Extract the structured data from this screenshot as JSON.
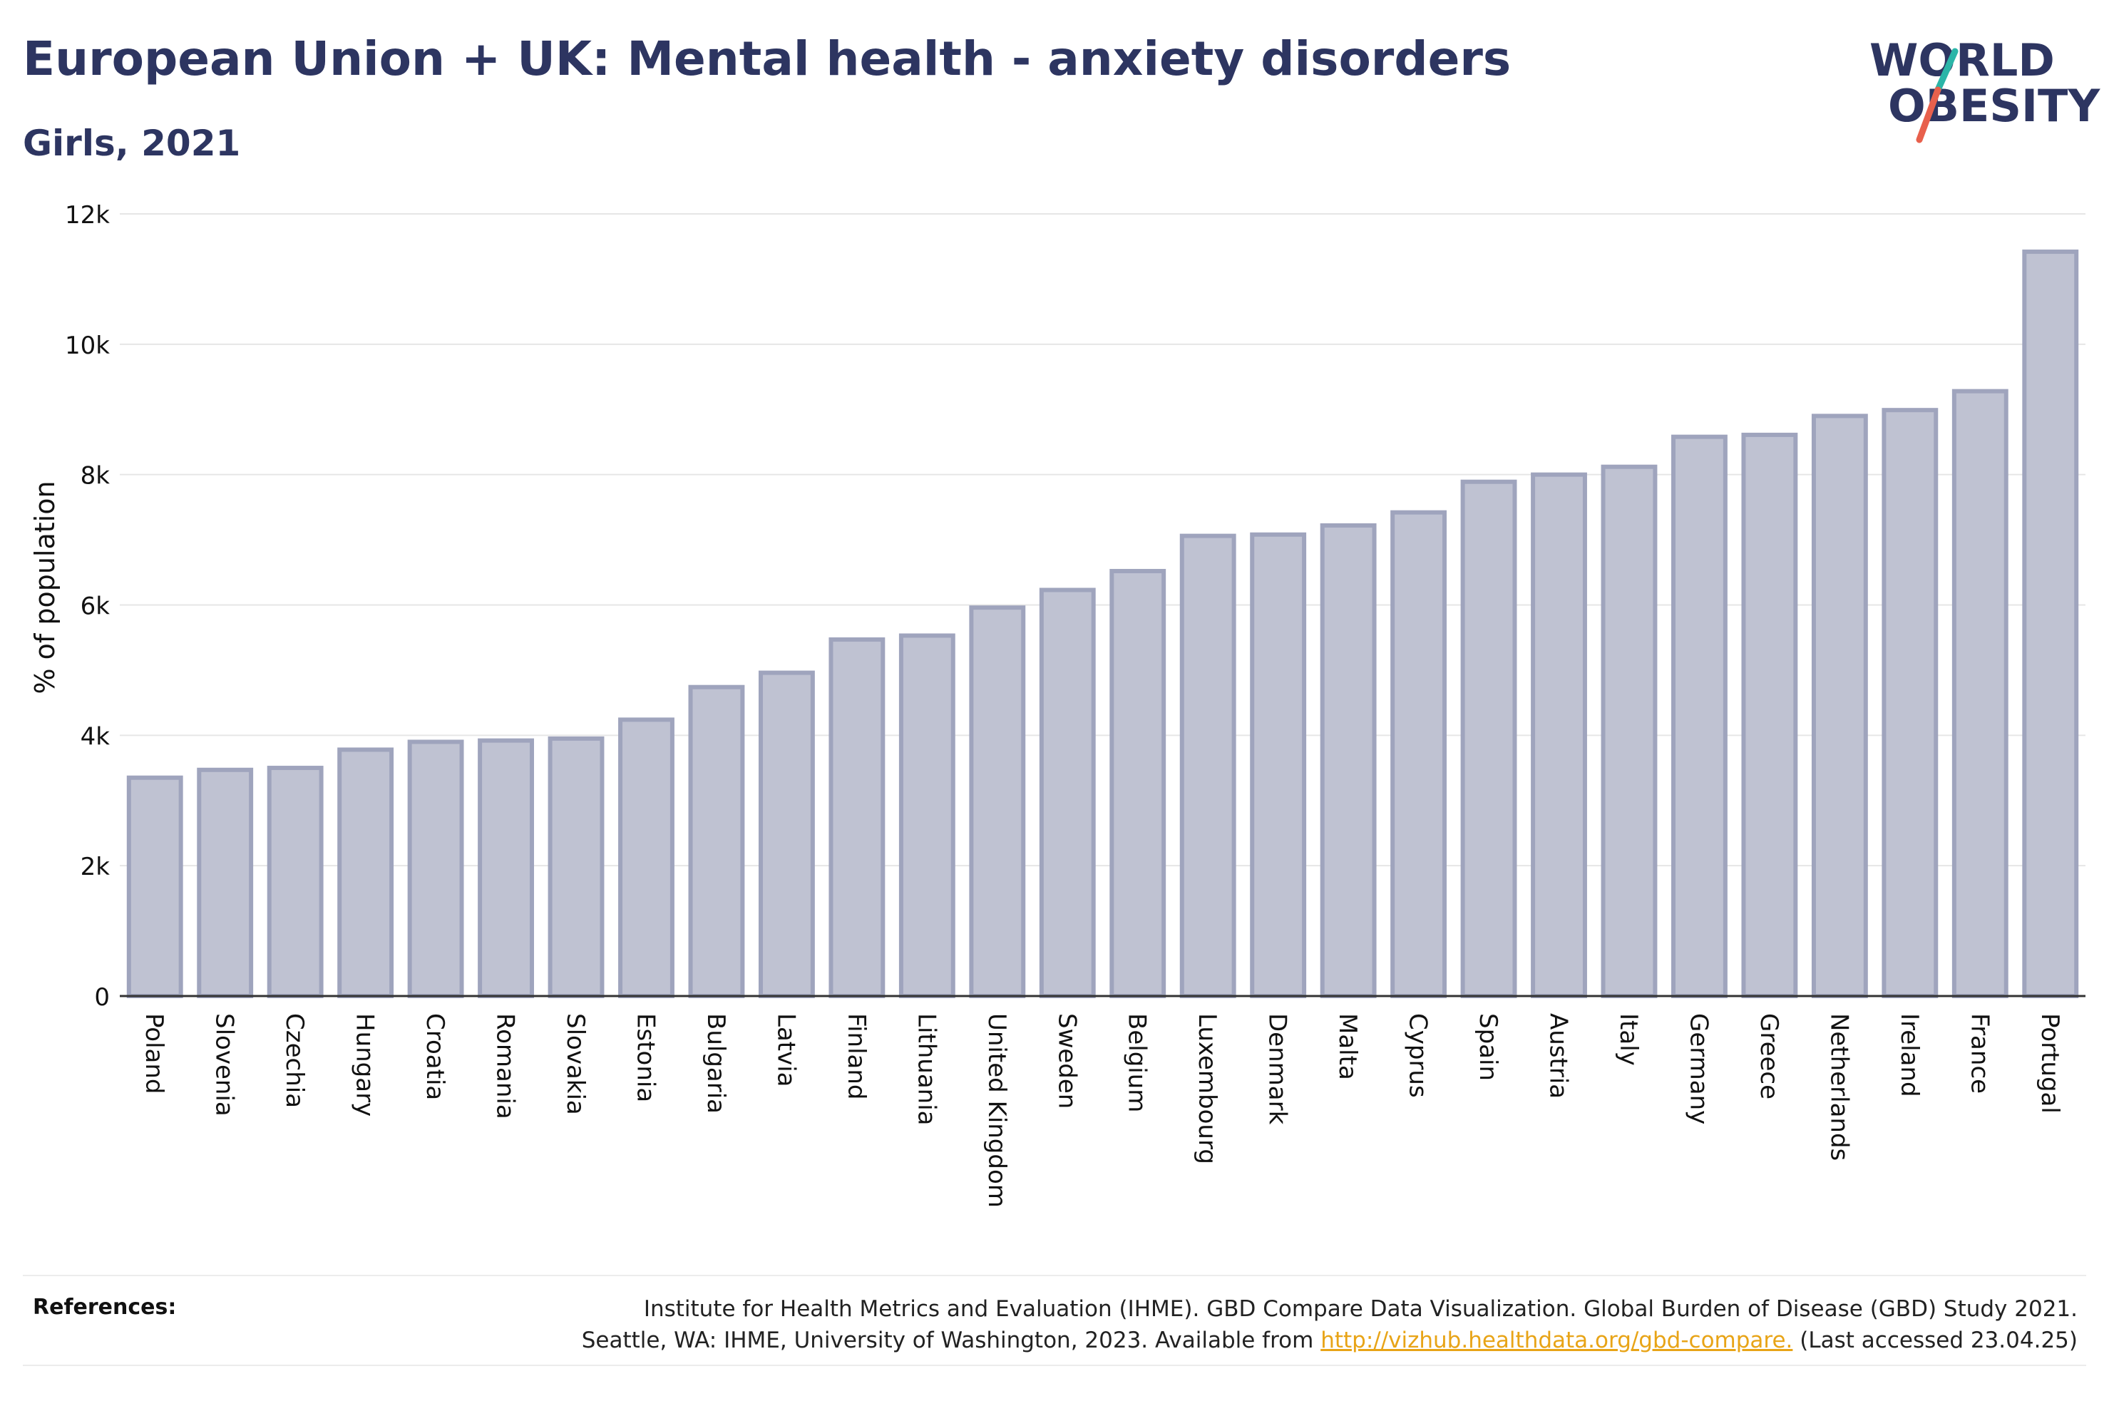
{
  "title": "European Union + UK: Mental health - anxiety disorders",
  "subtitle": "Girls, 2021",
  "logo": {
    "line1": "WORLD",
    "line2": "OBESITY",
    "slash_colors": [
      "#2bb5a8",
      "#e8604c"
    ],
    "text_color": "#2d3561"
  },
  "colors": {
    "bar_fill": "#bfc2d2",
    "bar_stroke": "#9fa4bd",
    "grid": "#e6e6e6",
    "axis": "#333333",
    "title": "#2d3561",
    "link": "#e8a417"
  },
  "chart_data": {
    "type": "bar",
    "title": "European Union + UK: Mental health - anxiety disorders",
    "subtitle": "Girls, 2021",
    "xlabel": "",
    "ylabel": "% of population",
    "ylim": [
      0,
      12000
    ],
    "yticks": [
      0,
      2000,
      4000,
      6000,
      8000,
      10000,
      12000
    ],
    "ytick_labels": [
      "0",
      "2k",
      "4k",
      "6k",
      "8k",
      "10k",
      "12k"
    ],
    "grid": true,
    "legend": "none",
    "categories": [
      "Poland",
      "Slovenia",
      "Czechia",
      "Hungary",
      "Croatia",
      "Romania",
      "Slovakia",
      "Estonia",
      "Bulgaria",
      "Latvia",
      "Finland",
      "Lithuania",
      "United Kingdom",
      "Sweden",
      "Belgium",
      "Luxembourg",
      "Denmark",
      "Malta",
      "Cyprus",
      "Spain",
      "Austria",
      "Italy",
      "Germany",
      "Greece",
      "Netherlands",
      "Ireland",
      "France",
      "Portugal"
    ],
    "values": [
      3350,
      3470,
      3500,
      3780,
      3900,
      3920,
      3950,
      4240,
      4740,
      4960,
      5470,
      5530,
      5960,
      6230,
      6520,
      7060,
      7080,
      7220,
      7420,
      7890,
      8000,
      8120,
      8580,
      8610,
      8900,
      8990,
      9280,
      11420
    ]
  },
  "references": {
    "label": "References:",
    "line1": "Institute for Health Metrics and Evaluation (IHME). GBD Compare Data Visualization. Global Burden of Disease (GBD) Study 2021.",
    "line2_prefix": "Seattle, WA: IHME, University of Washington, 2023. Available from ",
    "link": "http://vizhub.healthdata.org/gbd-compare.",
    "line2_suffix": " (Last accessed 23.04.25)"
  }
}
